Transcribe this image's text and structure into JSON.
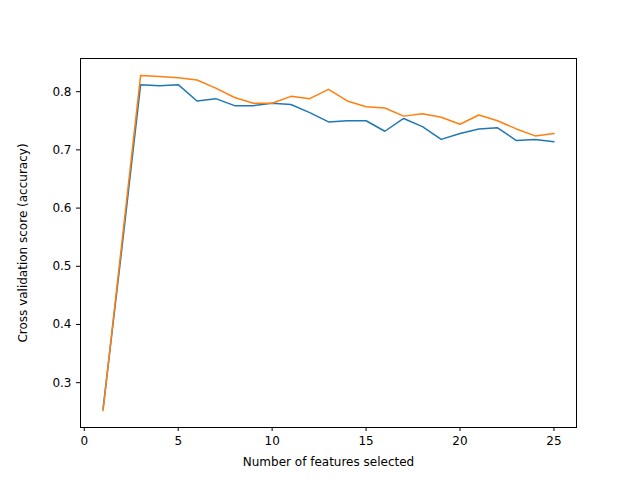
{
  "chart_data": {
    "type": "line",
    "x_label": "Number of features selected",
    "y_label": "Cross validation score (accuracy)",
    "x": [
      1,
      2,
      3,
      4,
      5,
      6,
      7,
      8,
      9,
      10,
      11,
      12,
      13,
      14,
      15,
      16,
      17,
      18,
      19,
      20,
      21,
      22,
      23,
      24,
      25
    ],
    "series": [
      {
        "color": "#1f77b4",
        "values": [
          0.255,
          0.53,
          0.812,
          0.81,
          0.812,
          0.784,
          0.788,
          0.776,
          0.776,
          0.78,
          0.778,
          0.764,
          0.748,
          0.75,
          0.75,
          0.732,
          0.754,
          0.74,
          0.718,
          0.728,
          0.736,
          0.738,
          0.716,
          0.718,
          0.714
        ]
      },
      {
        "color": "#ff7f0e",
        "values": [
          0.252,
          0.54,
          0.828,
          0.826,
          0.824,
          0.82,
          0.806,
          0.79,
          0.78,
          0.78,
          0.792,
          0.788,
          0.804,
          0.784,
          0.774,
          0.772,
          0.758,
          0.762,
          0.756,
          0.744,
          0.76,
          0.75,
          0.736,
          0.724,
          0.728
        ]
      }
    ],
    "xlim": [
      -0.2,
      26.2
    ],
    "ylim": [
      0.223,
      0.857
    ],
    "xticks": [
      0,
      5,
      10,
      15,
      20,
      25
    ],
    "yticks": [
      0.3,
      0.4,
      0.5,
      0.6,
      0.7,
      0.8
    ],
    "grid": false
  }
}
